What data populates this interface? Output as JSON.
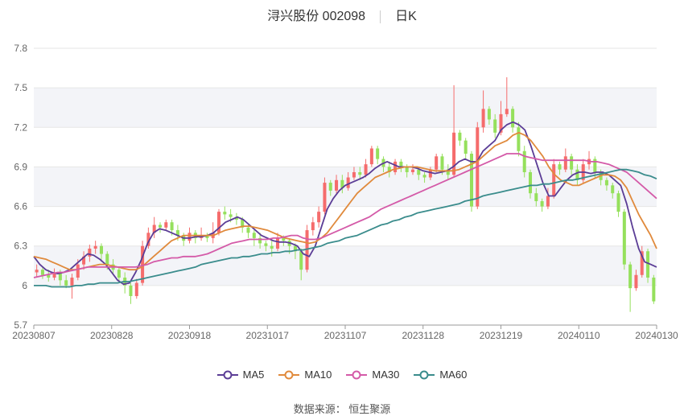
{
  "header": {
    "stock": "浔兴股份 002098",
    "period": "日K"
  },
  "source": "数据来源： 恒生聚源",
  "legend": [
    {
      "name": "MA5",
      "color": "#5b3d96"
    },
    {
      "name": "MA10",
      "color": "#e08a3c"
    },
    {
      "name": "MA30",
      "color": "#d45aa8"
    },
    {
      "name": "MA60",
      "color": "#3a8c8c"
    }
  ],
  "colors": {
    "up": "#f56c6c",
    "down": "#95e05c",
    "band": "#f3f4f8",
    "grid": "#e6e6e6"
  },
  "chart_data": {
    "type": "candlestick",
    "ylim": [
      5.7,
      7.8
    ],
    "yticks": [
      "7.8",
      "7.5",
      "7.2",
      "6.9",
      "6.6",
      "6.3",
      "6",
      "5.7"
    ],
    "xticks": [
      "20230807",
      "20230828",
      "20230918",
      "20231017",
      "20231107",
      "20231128",
      "20231219",
      "20240110",
      "20240130"
    ],
    "candles": [
      [
        6.1,
        6.12,
        6.16,
        6.06
      ],
      [
        6.12,
        6.08,
        6.14,
        6.05
      ],
      [
        6.08,
        6.06,
        6.12,
        6.03
      ],
      [
        6.06,
        6.1,
        6.13,
        6.04
      ],
      [
        6.1,
        6.04,
        6.12,
        6.0
      ],
      [
        6.04,
        6.0,
        6.08,
        5.98
      ],
      [
        6.0,
        6.06,
        6.09,
        5.9
      ],
      [
        6.06,
        6.16,
        6.2,
        6.04
      ],
      [
        6.16,
        6.22,
        6.26,
        6.12
      ],
      [
        6.22,
        6.28,
        6.31,
        6.18
      ],
      [
        6.28,
        6.3,
        6.34,
        6.24
      ],
      [
        6.3,
        6.24,
        6.32,
        6.18
      ],
      [
        6.24,
        6.16,
        6.26,
        6.12
      ],
      [
        6.16,
        6.12,
        6.2,
        6.08
      ],
      [
        6.12,
        6.06,
        6.14,
        6.02
      ],
      [
        6.06,
        6.0,
        6.1,
        5.94
      ],
      [
        6.0,
        5.92,
        6.02,
        5.86
      ],
      [
        5.92,
        6.02,
        6.05,
        5.9
      ],
      [
        6.02,
        6.3,
        6.34,
        6.0
      ],
      [
        6.3,
        6.4,
        6.44,
        6.28
      ],
      [
        6.4,
        6.46,
        6.52,
        6.36
      ],
      [
        6.46,
        6.44,
        6.48,
        6.4
      ],
      [
        6.44,
        6.48,
        6.5,
        6.42
      ],
      [
        6.48,
        6.42,
        6.5,
        6.38
      ],
      [
        6.42,
        6.38,
        6.46,
        6.34
      ],
      [
        6.38,
        6.34,
        6.4,
        6.3
      ],
      [
        6.34,
        6.4,
        6.44,
        6.32
      ],
      [
        6.4,
        6.36,
        6.42,
        6.32
      ],
      [
        6.36,
        6.38,
        6.44,
        6.34
      ],
      [
        6.38,
        6.36,
        6.4,
        6.33
      ],
      [
        6.36,
        6.4,
        6.48,
        6.32
      ],
      [
        6.4,
        6.56,
        6.58,
        6.38
      ],
      [
        6.56,
        6.54,
        6.6,
        6.5
      ],
      [
        6.54,
        6.52,
        6.58,
        6.48
      ],
      [
        6.52,
        6.5,
        6.55,
        6.46
      ],
      [
        6.5,
        6.44,
        6.52,
        6.4
      ],
      [
        6.44,
        6.4,
        6.46,
        6.36
      ],
      [
        6.4,
        6.36,
        6.42,
        6.3
      ],
      [
        6.36,
        6.32,
        6.4,
        6.28
      ],
      [
        6.32,
        6.3,
        6.34,
        6.26
      ],
      [
        6.3,
        6.28,
        6.34,
        6.22
      ],
      [
        6.28,
        6.36,
        6.4,
        6.26
      ],
      [
        6.36,
        6.34,
        6.38,
        6.3
      ],
      [
        6.34,
        6.3,
        6.36,
        6.24
      ],
      [
        6.3,
        6.26,
        6.32,
        6.2
      ],
      [
        6.26,
        6.12,
        6.28,
        6.04
      ],
      [
        6.12,
        6.42,
        6.46,
        6.1
      ],
      [
        6.42,
        6.48,
        6.52,
        6.38
      ],
      [
        6.48,
        6.56,
        6.6,
        6.44
      ],
      [
        6.56,
        6.78,
        6.82,
        6.54
      ],
      [
        6.78,
        6.72,
        6.8,
        6.68
      ],
      [
        6.72,
        6.8,
        6.84,
        6.7
      ],
      [
        6.8,
        6.74,
        6.84,
        6.7
      ],
      [
        6.74,
        6.82,
        6.86,
        6.72
      ],
      [
        6.82,
        6.86,
        6.9,
        6.8
      ],
      [
        6.86,
        6.84,
        6.9,
        6.8
      ],
      [
        6.84,
        6.92,
        6.96,
        6.82
      ],
      [
        6.92,
        7.04,
        7.06,
        6.9
      ],
      [
        7.04,
        6.96,
        7.06,
        6.92
      ],
      [
        6.96,
        6.9,
        6.98,
        6.86
      ],
      [
        6.9,
        6.86,
        6.94,
        6.82
      ],
      [
        6.86,
        6.94,
        6.96,
        6.84
      ],
      [
        6.94,
        6.9,
        6.96,
        6.86
      ],
      [
        6.9,
        6.86,
        6.92,
        6.82
      ],
      [
        6.86,
        6.88,
        6.92,
        6.84
      ],
      [
        6.88,
        6.84,
        6.9,
        6.8
      ],
      [
        6.84,
        6.82,
        6.86,
        6.78
      ],
      [
        6.82,
        6.88,
        6.9,
        6.8
      ],
      [
        6.88,
        6.98,
        7.0,
        6.86
      ],
      [
        6.98,
        6.88,
        7.0,
        6.84
      ],
      [
        6.88,
        6.84,
        6.92,
        6.8
      ],
      [
        6.84,
        7.16,
        7.52,
        6.82
      ],
      [
        7.16,
        7.1,
        7.18,
        7.06
      ],
      [
        7.1,
        7.0,
        7.12,
        6.96
      ],
      [
        7.0,
        6.6,
        7.02,
        6.56
      ],
      [
        6.6,
        7.2,
        7.24,
        6.58
      ],
      [
        7.2,
        7.34,
        7.48,
        7.16
      ],
      [
        7.34,
        7.26,
        7.36,
        7.22
      ],
      [
        7.26,
        7.16,
        7.3,
        7.12
      ],
      [
        7.16,
        7.3,
        7.4,
        7.14
      ],
      [
        7.3,
        7.34,
        7.58,
        7.28
      ],
      [
        7.34,
        7.2,
        7.36,
        7.16
      ],
      [
        7.2,
        7.02,
        7.24,
        6.98
      ],
      [
        7.02,
        6.86,
        7.06,
        6.82
      ],
      [
        6.86,
        6.7,
        6.88,
        6.66
      ],
      [
        6.7,
        6.64,
        6.74,
        6.6
      ],
      [
        6.64,
        6.6,
        6.66,
        6.56
      ],
      [
        6.6,
        6.68,
        6.74,
        6.58
      ],
      [
        6.68,
        6.92,
        6.96,
        6.66
      ],
      [
        6.92,
        6.88,
        6.94,
        6.84
      ],
      [
        6.88,
        6.98,
        7.04,
        6.86
      ],
      [
        6.98,
        6.88,
        7.0,
        6.84
      ],
      [
        6.88,
        6.8,
        6.92,
        6.76
      ],
      [
        6.8,
        6.92,
        6.96,
        6.78
      ],
      [
        6.92,
        6.96,
        7.02,
        6.88
      ],
      [
        6.96,
        6.86,
        6.98,
        6.82
      ],
      [
        6.86,
        6.8,
        6.88,
        6.76
      ],
      [
        6.8,
        6.76,
        6.82,
        6.72
      ],
      [
        6.76,
        6.7,
        6.78,
        6.66
      ],
      [
        6.7,
        6.56,
        6.72,
        6.52
      ],
      [
        6.56,
        6.16,
        6.58,
        6.12
      ],
      [
        6.16,
        5.98,
        6.18,
        5.8
      ],
      [
        5.98,
        6.08,
        6.12,
        5.96
      ],
      [
        6.08,
        6.26,
        6.3,
        6.06
      ],
      [
        6.26,
        6.06,
        6.28,
        6.02
      ],
      [
        6.06,
        5.88,
        6.08,
        5.86
      ]
    ],
    "series": [
      {
        "name": "MA5",
        "color": "#5b3d96",
        "values": [
          6.22,
          6.16,
          6.12,
          6.1,
          6.09,
          6.1,
          6.12,
          6.16,
          6.2,
          6.24,
          6.23,
          6.2,
          6.16,
          6.1,
          6.04,
          6.01,
          6.02,
          6.1,
          6.2,
          6.32,
          6.4,
          6.43,
          6.42,
          6.4,
          6.38,
          6.36,
          6.36,
          6.37,
          6.37,
          6.38,
          6.4,
          6.44,
          6.48,
          6.5,
          6.52,
          6.5,
          6.46,
          6.42,
          6.38,
          6.36,
          6.34,
          6.33,
          6.33,
          6.32,
          6.3,
          6.24,
          6.22,
          6.3,
          6.44,
          6.58,
          6.66,
          6.72,
          6.76,
          6.78,
          6.8,
          6.82,
          6.85,
          6.89,
          6.92,
          6.94,
          6.92,
          6.9,
          6.9,
          6.9,
          6.89,
          6.87,
          6.86,
          6.85,
          6.86,
          6.87,
          6.9,
          6.94,
          6.96,
          6.94,
          6.94,
          7.02,
          7.06,
          7.1,
          7.18,
          7.22,
          7.24,
          7.22,
          7.18,
          7.06,
          6.92,
          6.78,
          6.68,
          6.68,
          6.74,
          6.8,
          6.84,
          6.86,
          6.86,
          6.85,
          6.86,
          6.86,
          6.84,
          6.8,
          6.76,
          6.62,
          6.44,
          6.28,
          6.18,
          6.16,
          6.14
        ]
      },
      {
        "name": "MA10",
        "color": "#e08a3c",
        "values": [
          6.22,
          6.21,
          6.2,
          6.18,
          6.16,
          6.14,
          6.12,
          6.12,
          6.13,
          6.14,
          6.15,
          6.16,
          6.16,
          6.15,
          6.14,
          6.13,
          6.12,
          6.12,
          6.14,
          6.18,
          6.22,
          6.26,
          6.3,
          6.34,
          6.36,
          6.38,
          6.38,
          6.38,
          6.38,
          6.38,
          6.38,
          6.4,
          6.42,
          6.43,
          6.44,
          6.45,
          6.45,
          6.44,
          6.43,
          6.42,
          6.4,
          6.38,
          6.36,
          6.35,
          6.34,
          6.33,
          6.32,
          6.33,
          6.36,
          6.4,
          6.46,
          6.52,
          6.58,
          6.64,
          6.7,
          6.74,
          6.78,
          6.82,
          6.84,
          6.86,
          6.88,
          6.89,
          6.9,
          6.9,
          6.9,
          6.89,
          6.88,
          6.87,
          6.87,
          6.87,
          6.87,
          6.88,
          6.9,
          6.92,
          6.94,
          6.98,
          7.02,
          7.06,
          7.08,
          7.1,
          7.14,
          7.16,
          7.14,
          7.1,
          7.04,
          6.98,
          6.9,
          6.84,
          6.8,
          6.78,
          6.76,
          6.76,
          6.78,
          6.8,
          6.82,
          6.84,
          6.84,
          6.83,
          6.8,
          6.74,
          6.64,
          6.54,
          6.46,
          6.38,
          6.28
        ]
      },
      {
        "name": "MA30",
        "color": "#d45aa8",
        "values": [
          6.06,
          6.07,
          6.08,
          6.09,
          6.1,
          6.1,
          6.11,
          6.12,
          6.13,
          6.14,
          6.14,
          6.14,
          6.14,
          6.14,
          6.14,
          6.14,
          6.14,
          6.14,
          6.15,
          6.16,
          6.18,
          6.19,
          6.2,
          6.21,
          6.21,
          6.22,
          6.22,
          6.22,
          6.23,
          6.24,
          6.26,
          6.28,
          6.3,
          6.32,
          6.33,
          6.34,
          6.35,
          6.35,
          6.35,
          6.35,
          6.36,
          6.36,
          6.37,
          6.38,
          6.38,
          6.36,
          6.35,
          6.35,
          6.36,
          6.38,
          6.4,
          6.42,
          6.44,
          6.46,
          6.48,
          6.5,
          6.52,
          6.55,
          6.58,
          6.6,
          6.62,
          6.64,
          6.66,
          6.68,
          6.7,
          6.72,
          6.74,
          6.76,
          6.78,
          6.8,
          6.82,
          6.84,
          6.86,
          6.88,
          6.9,
          6.92,
          6.94,
          6.96,
          6.98,
          7.0,
          7.0,
          7.0,
          6.98,
          6.97,
          6.96,
          6.95,
          6.95,
          6.95,
          6.95,
          6.95,
          6.95,
          6.95,
          6.95,
          6.94,
          6.94,
          6.93,
          6.92,
          6.9,
          6.88,
          6.86,
          6.82,
          6.78,
          6.74,
          6.7,
          6.66
        ]
      },
      {
        "name": "MA60",
        "color": "#3a8c8c",
        "values": [
          6.0,
          6.0,
          6.0,
          5.99,
          5.99,
          5.99,
          5.99,
          6.0,
          6.0,
          6.01,
          6.01,
          6.02,
          6.02,
          6.02,
          6.02,
          6.03,
          6.03,
          6.04,
          6.05,
          6.06,
          6.07,
          6.08,
          6.09,
          6.1,
          6.11,
          6.12,
          6.13,
          6.14,
          6.16,
          6.17,
          6.18,
          6.19,
          6.2,
          6.21,
          6.21,
          6.22,
          6.22,
          6.23,
          6.24,
          6.24,
          6.25,
          6.25,
          6.26,
          6.26,
          6.27,
          6.27,
          6.28,
          6.29,
          6.3,
          6.32,
          6.33,
          6.34,
          6.36,
          6.37,
          6.38,
          6.4,
          6.42,
          6.44,
          6.46,
          6.47,
          6.49,
          6.5,
          6.52,
          6.53,
          6.55,
          6.56,
          6.57,
          6.58,
          6.59,
          6.6,
          6.61,
          6.62,
          6.64,
          6.65,
          6.66,
          6.68,
          6.69,
          6.7,
          6.71,
          6.72,
          6.73,
          6.74,
          6.75,
          6.76,
          6.76,
          6.77,
          6.77,
          6.78,
          6.79,
          6.8,
          6.8,
          6.81,
          6.82,
          6.83,
          6.84,
          6.85,
          6.86,
          6.87,
          6.88,
          6.88,
          6.87,
          6.86,
          6.84,
          6.83,
          6.81
        ]
      }
    ]
  }
}
